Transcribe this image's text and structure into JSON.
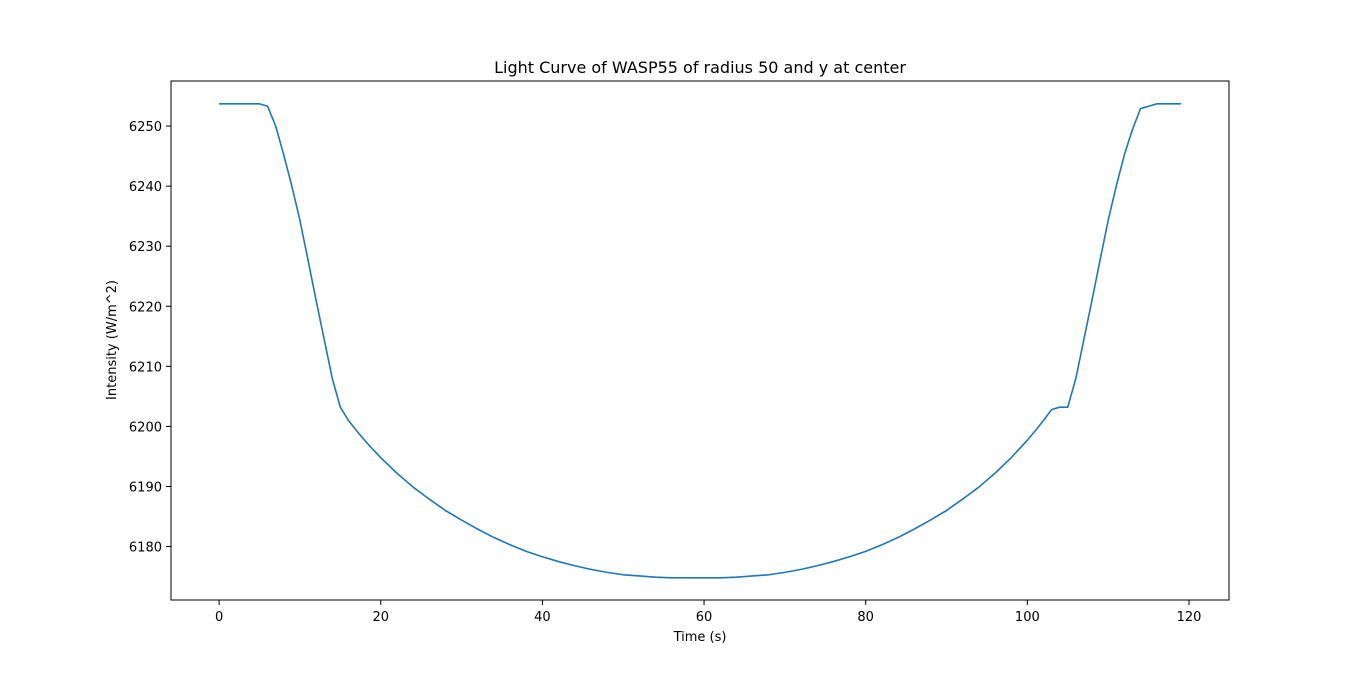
{
  "chart_data": {
    "type": "line",
    "title": "Light Curve of WASP55 of radius 50 and y at center",
    "xlabel": "Time (s)",
    "ylabel": "Intensity (W/m^2)",
    "xlim": [
      -5.95,
      124.95
    ],
    "ylim": [
      6171.1,
      6257.5
    ],
    "xticks": [
      0,
      20,
      40,
      60,
      80,
      100,
      120
    ],
    "yticks": [
      6180,
      6190,
      6200,
      6210,
      6220,
      6230,
      6240,
      6250
    ],
    "grid": false,
    "line_color": "#1f77b4",
    "series": [
      {
        "x": [
          0,
          1,
          2,
          3,
          4,
          5,
          6,
          7,
          8,
          9,
          10,
          11,
          12,
          13,
          14,
          15,
          16,
          17,
          18,
          19,
          20,
          22,
          24,
          26,
          28,
          30,
          32,
          34,
          36,
          38,
          40,
          42,
          44,
          46,
          48,
          50,
          52,
          54,
          56,
          58,
          60,
          62,
          64,
          66,
          68,
          70,
          72,
          74,
          76,
          78,
          80,
          82,
          84,
          86,
          88,
          90,
          92,
          94,
          96,
          98,
          100,
          101,
          102,
          103,
          104,
          105,
          106,
          107,
          108,
          109,
          110,
          111,
          112,
          113,
          114,
          115,
          116,
          117,
          118,
          119
        ],
        "y": [
          6253.7,
          6253.7,
          6253.7,
          6253.7,
          6253.7,
          6253.7,
          6253.3,
          6250.0,
          6245.2,
          6240.0,
          6234.3,
          6227.7,
          6221.0,
          6214.5,
          6208.0,
          6203.2,
          6201.0,
          6199.3,
          6197.7,
          6196.2,
          6194.8,
          6192.2,
          6189.9,
          6187.9,
          6186.0,
          6184.4,
          6182.9,
          6181.5,
          6180.3,
          6179.2,
          6178.3,
          6177.5,
          6176.8,
          6176.2,
          6175.7,
          6175.3,
          6175.1,
          6174.9,
          6174.8,
          6174.8,
          6174.8,
          6174.8,
          6174.9,
          6175.1,
          6175.3,
          6175.7,
          6176.2,
          6176.8,
          6177.5,
          6178.3,
          6179.2,
          6180.3,
          6181.5,
          6182.9,
          6184.4,
          6186.0,
          6187.9,
          6189.9,
          6192.2,
          6194.8,
          6197.7,
          6199.3,
          6201.0,
          6202.8,
          6203.2,
          6203.2,
          6208.0,
          6214.5,
          6221.0,
          6227.7,
          6234.3,
          6240.0,
          6245.2,
          6249.4,
          6252.9,
          6253.3,
          6253.7,
          6253.7,
          6253.7,
          6253.7
        ]
      }
    ]
  }
}
